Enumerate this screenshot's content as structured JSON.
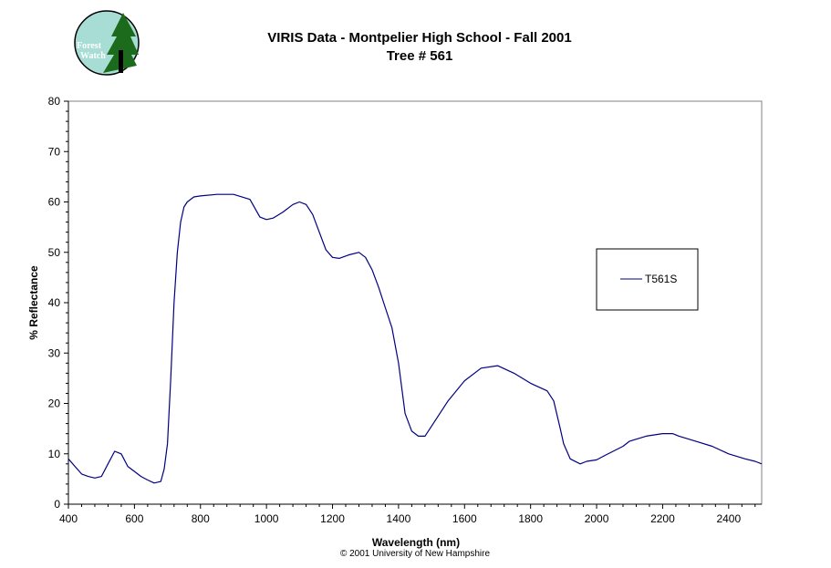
{
  "logo": {
    "line1": "Forest",
    "line2": "Watch"
  },
  "credit": "© 2001 University of New Hampshire",
  "colors": {
    "series": "#000080",
    "logo_circle": "#a8ddd6",
    "tree": "#1c6b1c"
  },
  "chart_data": {
    "type": "line",
    "title": "VIRIS Data - Montpelier High School - Fall 2001",
    "subtitle": "Tree # 561",
    "xlabel": "Wavelength (nm)",
    "ylabel": "% Reflectance",
    "xlim": [
      400,
      2500
    ],
    "ylim": [
      0,
      80
    ],
    "xticks": [
      400,
      600,
      800,
      1000,
      1200,
      1400,
      1600,
      1800,
      2000,
      2200,
      2400
    ],
    "yticks": [
      0,
      10,
      20,
      30,
      40,
      50,
      60,
      70,
      80
    ],
    "grid": false,
    "legend": "right",
    "series": [
      {
        "name": "T561S",
        "x": [
          400,
          420,
          440,
          460,
          480,
          500,
          520,
          540,
          560,
          580,
          600,
          620,
          640,
          660,
          680,
          690,
          700,
          710,
          720,
          730,
          740,
          750,
          760,
          780,
          800,
          850,
          900,
          950,
          980,
          1000,
          1020,
          1050,
          1080,
          1100,
          1120,
          1140,
          1160,
          1180,
          1200,
          1220,
          1250,
          1280,
          1300,
          1320,
          1340,
          1360,
          1380,
          1400,
          1420,
          1440,
          1460,
          1480,
          1500,
          1550,
          1600,
          1650,
          1700,
          1750,
          1800,
          1850,
          1870,
          1890,
          1900,
          1920,
          1950,
          1970,
          2000,
          2020,
          2050,
          2080,
          2100,
          2150,
          2200,
          2230,
          2250,
          2300,
          2350,
          2400,
          2450,
          2480,
          2500
        ],
        "y": [
          9,
          7.5,
          6,
          5.5,
          5.2,
          5.5,
          8,
          10.5,
          10,
          7.5,
          6.5,
          5.5,
          4.8,
          4.2,
          4.5,
          7,
          12,
          25,
          40,
          50,
          56,
          59,
          60,
          61,
          61.2,
          61.5,
          61.5,
          60.5,
          57,
          56.5,
          56.8,
          58,
          59.5,
          60,
          59.5,
          57.5,
          54,
          50.5,
          49,
          48.8,
          49.5,
          50,
          49,
          46.5,
          43,
          39,
          35,
          28,
          18,
          14.5,
          13.5,
          13.5,
          15.5,
          20.5,
          24.5,
          27,
          27.5,
          26,
          24,
          22.5,
          20.5,
          15,
          12,
          9,
          8,
          8.5,
          8.8,
          9.5,
          10.5,
          11.5,
          12.5,
          13.5,
          14,
          14,
          13.5,
          12.5,
          11.5,
          10,
          9,
          8.5,
          8
        ]
      }
    ]
  }
}
